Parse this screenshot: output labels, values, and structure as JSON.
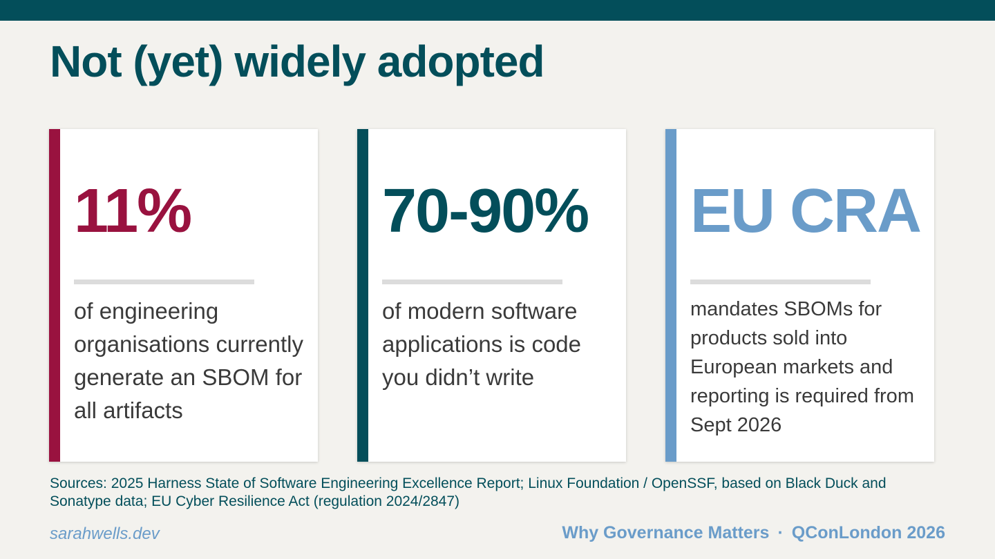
{
  "header": {
    "title": "Not (yet) widely adopted"
  },
  "cards": [
    {
      "stat": "11%",
      "text": "of engineering organisations currently generate an SBOM for all artifacts"
    },
    {
      "stat": "70-90%",
      "text": "of modern software applications is code you didn’t write"
    },
    {
      "stat": "EU CRA",
      "text": "mandates SBOMs for products sold into European markets and reporting is required from Sept 2026"
    }
  ],
  "sources": "Sources: 2025 Harness State of Software Engineering Excellence Report; Linux Foundation / OpenSSF, based on Black Duck and Sonatype data; EU Cyber Resilience Act (regulation 2024/2847)",
  "footer": {
    "site": "sarahwells.dev",
    "talk": "Why Governance Matters",
    "event": "QConLondon 2026"
  }
}
